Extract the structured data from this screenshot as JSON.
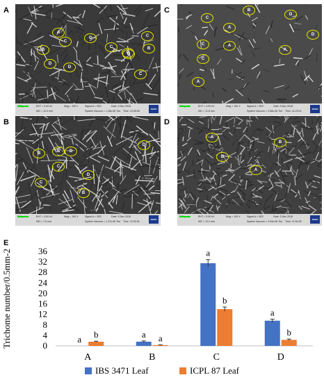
{
  "panels": [
    {
      "letter": "A",
      "eht": "EHT = 3.00 kV",
      "wd": "WD = 10.4 mm",
      "mag": "Mag = 100 X",
      "signal": "Signal A = SE2",
      "date": "Date :3 Dec 2018",
      "vacuum": "System Vacuum = 1.28e-06 Torr",
      "time": "Time :12:35:55",
      "scale": "100 µm*",
      "marks": [
        "A",
        "B",
        "C",
        "C",
        "D",
        "D",
        "C",
        "D",
        "B",
        "C",
        "D",
        "C"
      ]
    },
    {
      "letter": "C",
      "eht": "EHT = 3.00 kV",
      "wd": "WD = 11.8 mm",
      "mag": "Mag = 100 X",
      "signal": "Signal A = SE2",
      "date": "Date :3 Dec 2018",
      "vacuum": "System Vacuum = 3.56e-06 Torr",
      "time": "Time :11:29:01",
      "scale": "100 µm*",
      "marks": [
        "B",
        "D",
        "C",
        "A",
        "D",
        "C",
        "A",
        "C",
        "A",
        "A"
      ]
    },
    {
      "letter": "B",
      "eht": "EHT = 3.00 kV",
      "wd": "WD = 7.5 mm",
      "mag": "Mag = 100 X",
      "signal": "Signal A = SE2",
      "date": "Date :3 Dec 2018",
      "vacuum": "System Vacuum = 1.27e-06 Torr",
      "time": "Time :12:52:51",
      "scale": "100 µm*",
      "marks": [
        "D",
        "D",
        "B",
        "B",
        "C",
        "C",
        "D",
        "B"
      ]
    },
    {
      "letter": "D",
      "eht": "EHT = 3.00 kV",
      "wd": "WD = 12.2 mm",
      "mag": "Mag = 100 X",
      "signal": "Signal A = SE2",
      "date": "Date :3 Dec 2018",
      "vacuum": "System Vacuum = 3.54e-06 Torr",
      "time": "Time :11:54:35",
      "scale": "100 µm*",
      "marks": [
        "A",
        "B",
        "B",
        "A"
      ]
    }
  ],
  "brand": "ZEISS",
  "chart_letter": "E",
  "chart_data": {
    "type": "bar",
    "categories": [
      "A",
      "B",
      "C",
      "D"
    ],
    "ylabel": "Trichome number/0.5mm-2",
    "ylim": [
      0,
      36
    ],
    "yticks": [
      0,
      4,
      8,
      12,
      16,
      20,
      24,
      28,
      32,
      36
    ],
    "series": [
      {
        "name": "IBS 3471 Leaf",
        "color": "#4472c4",
        "values": [
          0,
          1.6,
          31.5,
          9.6
        ],
        "errors": [
          0,
          0.3,
          1.4,
          0.6
        ],
        "labels": [
          "a",
          "a",
          "a",
          "a"
        ]
      },
      {
        "name": "ICPL 87 Leaf",
        "color": "#ed7d31",
        "values": [
          1.6,
          0.3,
          14,
          2.3
        ],
        "errors": [
          0.2,
          0.1,
          0.8,
          0.3
        ],
        "labels": [
          "b",
          "a",
          "b",
          "b"
        ]
      }
    ],
    "legend_position": "bottom"
  }
}
